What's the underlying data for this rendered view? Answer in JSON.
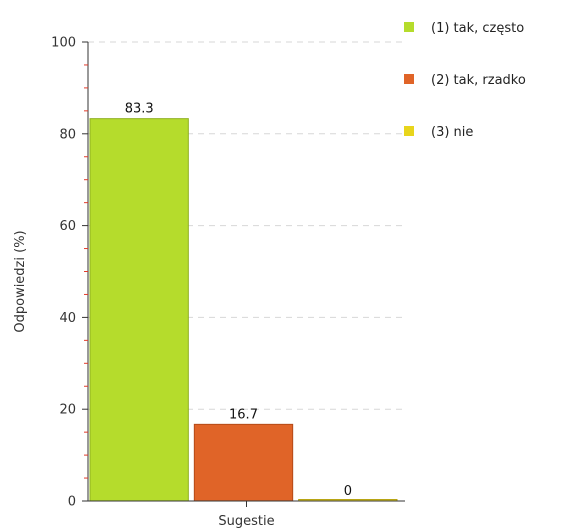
{
  "chart_data": {
    "type": "bar",
    "categories": [
      "Sugestie"
    ],
    "series": [
      {
        "name": "(1) tak, często",
        "values": [
          83.3
        ],
        "color": "#b5dc2c",
        "border": "#8fb01f"
      },
      {
        "name": "(2) tak, rzadko",
        "values": [
          16.7
        ],
        "color": "#e06428",
        "border": "#b44a18"
      },
      {
        "name": "(3) nie",
        "values": [
          0
        ],
        "color": "#e8d51c",
        "border": "#b8a514"
      }
    ],
    "data_labels": [
      "83.3",
      "16.7",
      "0"
    ],
    "xlabel": "Sugestie",
    "ylabel": "Odpowiedzi (%)",
    "ylim": [
      0,
      100
    ],
    "yticks": [
      0,
      20,
      40,
      60,
      80,
      100
    ],
    "grid": true,
    "legend_position": "top-right"
  }
}
